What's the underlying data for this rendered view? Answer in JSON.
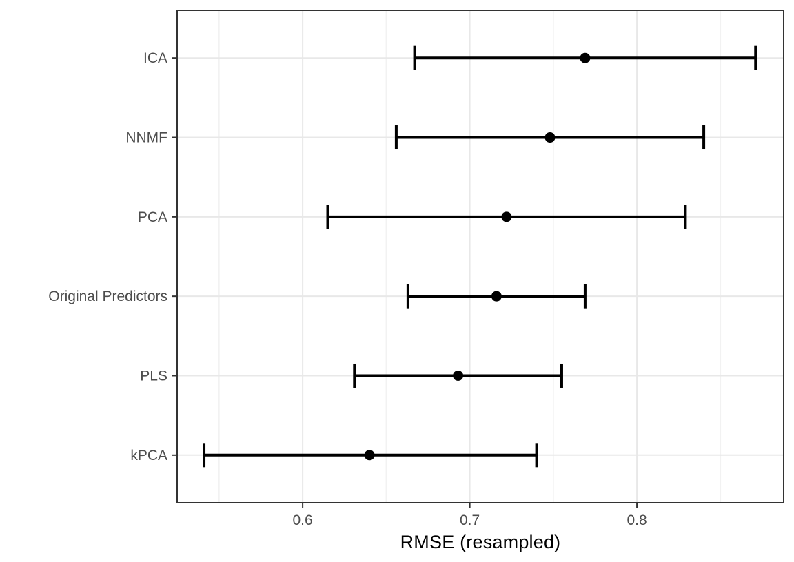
{
  "chart_data": {
    "type": "pointrange",
    "orientation": "horizontal",
    "title": "",
    "xlabel": "RMSE (resampled)",
    "ylabel": "",
    "categories": [
      "ICA",
      "NNMF",
      "PCA",
      "Original Predictors",
      "PLS",
      "kPCA"
    ],
    "series": [
      {
        "name": "RMSE",
        "mid": [
          0.769,
          0.748,
          0.722,
          0.716,
          0.693,
          0.64
        ],
        "lower": [
          0.667,
          0.656,
          0.615,
          0.663,
          0.631,
          0.541
        ],
        "upper": [
          0.871,
          0.84,
          0.829,
          0.769,
          0.755,
          0.74
        ]
      }
    ],
    "xlim": [
      0.5249,
      0.8878
    ],
    "x_ticks": [
      0.6,
      0.7,
      0.8
    ],
    "x_tick_labels": [
      "0.6",
      "0.7",
      "0.8"
    ],
    "x_minor_ticks": [
      0.55,
      0.65,
      0.75,
      0.85
    ],
    "grid": true,
    "legend": false,
    "style": {
      "point_color": "#000000",
      "line_color": "#000000",
      "panel_border_color": "#333333",
      "grid_major_color": "#E8E8E8",
      "grid_minor_color": "#F2F2F2",
      "tick_color": "#333333",
      "label_color": "#4D4D4D",
      "title_color": "#000000",
      "background": "#FFFFFF"
    }
  }
}
